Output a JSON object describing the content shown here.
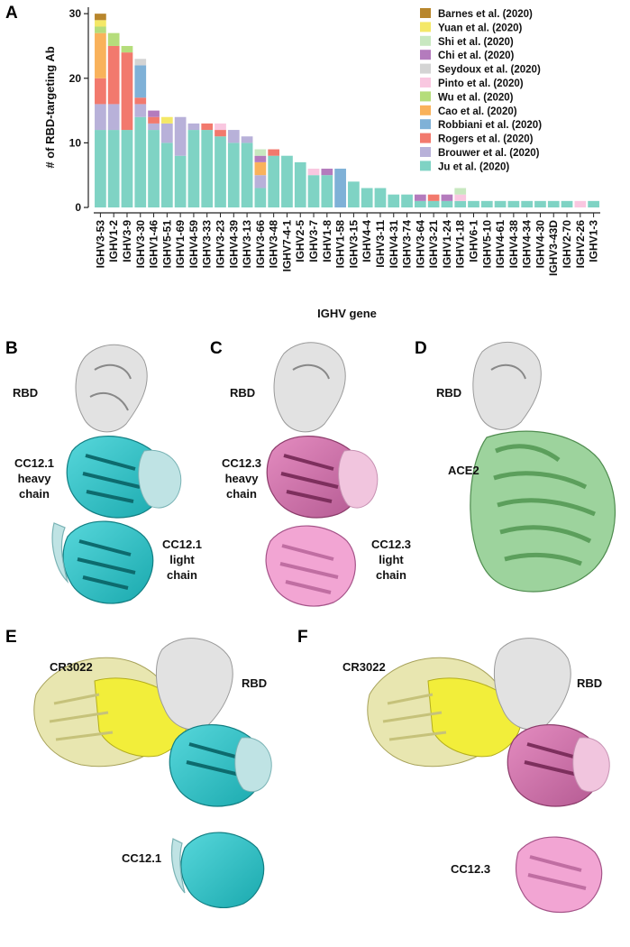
{
  "panels": {
    "A": "A",
    "B": "B",
    "C": "C",
    "D": "D",
    "E": "E",
    "F": "F"
  },
  "structure_labels": {
    "B_rbd": "RBD",
    "B_heavy": [
      "CC12.1",
      "heavy",
      "chain"
    ],
    "B_light": [
      "CC12.1",
      "light",
      "chain"
    ],
    "C_rbd": "RBD",
    "C_heavy": [
      "CC12.3",
      "heavy",
      "chain"
    ],
    "C_light": [
      "CC12.3",
      "light",
      "chain"
    ],
    "D_rbd": "RBD",
    "D_ace2": "ACE2",
    "E_cr3022": "CR3022",
    "E_rbd": "RBD",
    "E_cc": "CC12.1",
    "F_cr3022": "CR3022",
    "F_rbd": "RBD",
    "F_cc": "CC12.3"
  },
  "colors": {
    "rbd": "#d6d6d6",
    "cc121": "#3ec8cc",
    "cc121_light": "#a9d8da",
    "cc123": "#d872ad",
    "cc123_light": "#f0a8d2",
    "ace2": "#8cc98c",
    "cr3022": "#eeea3c",
    "cr3022_light": "#e8e6a8"
  },
  "chart_data": {
    "type": "bar",
    "stacked": true,
    "xlabel": "IGHV gene",
    "ylabel": "# of RBD-targeting Ab",
    "ylim": [
      0,
      31
    ],
    "yticks": [
      0,
      10,
      20,
      30
    ],
    "legend_position": "top-right",
    "categories": [
      "IGHV3-53",
      "IGHV1-2",
      "IGHV3-9",
      "IGHV3-30",
      "IGHV1-46",
      "IGHV5-51",
      "IGHV1-69",
      "IGHV4-59",
      "IGHV3-33",
      "IGHV3-23",
      "IGHV4-39",
      "IGHV3-13",
      "IGHV3-66",
      "IGHV3-48",
      "IGHV7-4-1",
      "IGHV2-5",
      "IGHV3-7",
      "IGHV1-8",
      "IGHV1-58",
      "IGHV3-15",
      "IGHV4-4",
      "IGHV3-11",
      "IGHV4-31",
      "IGHV3-74",
      "IGHV3-64",
      "IGHV3-21",
      "IGHV1-24",
      "IGHV1-18",
      "IGHV6-1",
      "IGHV5-10",
      "IGHV4-61",
      "IGHV4-38",
      "IGHV4-34",
      "IGHV4-30",
      "IGHV3-43D",
      "IGHV2-70",
      "IGHV2-26",
      "IGHV1-3"
    ],
    "series": [
      {
        "name": "Ju et al. (2020)",
        "color": "#7fd3c4",
        "values": [
          12,
          12,
          12,
          14,
          12,
          10,
          8,
          12,
          12,
          11,
          10,
          10,
          3,
          8,
          8,
          7,
          5,
          5,
          0,
          4,
          3,
          3,
          2,
          2,
          1,
          1,
          1,
          1,
          1,
          1,
          1,
          1,
          1,
          1,
          1,
          1,
          0,
          1
        ]
      },
      {
        "name": "Brouwer et al. (2020)",
        "color": "#b8b1d9",
        "values": [
          4,
          4,
          0,
          2,
          1,
          3,
          6,
          1,
          0,
          0,
          2,
          1,
          2,
          0,
          0,
          0,
          0,
          0,
          0,
          0,
          0,
          0,
          0,
          0,
          0,
          0,
          0,
          0,
          0,
          0,
          0,
          0,
          0,
          0,
          0,
          0,
          0,
          0
        ]
      },
      {
        "name": "Rogers et al. (2020)",
        "color": "#f2796d",
        "values": [
          4,
          9,
          12,
          1,
          1,
          0,
          0,
          0,
          1,
          1,
          0,
          0,
          0,
          1,
          0,
          0,
          0,
          0,
          0,
          0,
          0,
          0,
          0,
          0,
          0,
          1,
          0,
          0,
          0,
          0,
          0,
          0,
          0,
          0,
          0,
          0,
          0,
          0
        ]
      },
      {
        "name": "Robbiani et al. (2020)",
        "color": "#7fb1d7",
        "values": [
          0,
          0,
          0,
          5,
          0,
          0,
          0,
          0,
          0,
          0,
          0,
          0,
          0,
          0,
          0,
          0,
          0,
          0,
          6,
          0,
          0,
          0,
          0,
          0,
          0,
          0,
          0,
          0,
          0,
          0,
          0,
          0,
          0,
          0,
          0,
          0,
          0,
          0
        ]
      },
      {
        "name": "Cao et al. (2020)",
        "color": "#f9b25b",
        "values": [
          7,
          0,
          0,
          0,
          0,
          0,
          0,
          0,
          0,
          0,
          0,
          0,
          2,
          0,
          0,
          0,
          0,
          0,
          0,
          0,
          0,
          0,
          0,
          0,
          0,
          0,
          0,
          0,
          0,
          0,
          0,
          0,
          0,
          0,
          0,
          0,
          0,
          0
        ]
      },
      {
        "name": "Wu et al. (2020)",
        "color": "#b5dd7b",
        "values": [
          1,
          2,
          1,
          0,
          0,
          0,
          0,
          0,
          0,
          0,
          0,
          0,
          0,
          0,
          0,
          0,
          0,
          0,
          0,
          0,
          0,
          0,
          0,
          0,
          0,
          0,
          0,
          0,
          0,
          0,
          0,
          0,
          0,
          0,
          0,
          0,
          0,
          0
        ]
      },
      {
        "name": "Pinto et al. (2020)",
        "color": "#f9c7e0",
        "values": [
          0,
          0,
          0,
          0,
          0,
          0,
          0,
          0,
          0,
          1,
          0,
          0,
          0,
          0,
          0,
          0,
          1,
          0,
          0,
          0,
          0,
          0,
          0,
          0,
          0,
          0,
          0,
          1,
          0,
          0,
          0,
          0,
          0,
          0,
          0,
          0,
          1,
          0
        ]
      },
      {
        "name": "Seydoux et al. (2020)",
        "color": "#d4d4d4",
        "values": [
          0,
          0,
          0,
          1,
          0,
          0,
          0,
          0,
          0,
          0,
          0,
          0,
          0,
          0,
          0,
          0,
          0,
          0,
          0,
          0,
          0,
          0,
          0,
          0,
          0,
          0,
          0,
          0,
          0,
          0,
          0,
          0,
          0,
          0,
          0,
          0,
          0,
          0
        ]
      },
      {
        "name": "Chi et al. (2020)",
        "color": "#b47bbd",
        "values": [
          0,
          0,
          0,
          0,
          1,
          0,
          0,
          0,
          0,
          0,
          0,
          0,
          1,
          0,
          0,
          0,
          0,
          1,
          0,
          0,
          0,
          0,
          0,
          0,
          1,
          0,
          1,
          0,
          0,
          0,
          0,
          0,
          0,
          0,
          0,
          0,
          0,
          0
        ]
      },
      {
        "name": "Shi et al. (2020)",
        "color": "#c8e8c0",
        "values": [
          0,
          0,
          0,
          0,
          0,
          0,
          0,
          0,
          0,
          0,
          0,
          0,
          1,
          0,
          0,
          0,
          0,
          0,
          0,
          0,
          0,
          0,
          0,
          0,
          0,
          0,
          0,
          1,
          0,
          0,
          0,
          0,
          0,
          0,
          0,
          0,
          0,
          0
        ]
      },
      {
        "name": "Yuan et al. (2020)",
        "color": "#f4e867",
        "values": [
          1,
          0,
          0,
          0,
          0,
          1,
          0,
          0,
          0,
          0,
          0,
          0,
          0,
          0,
          0,
          0,
          0,
          0,
          0,
          0,
          0,
          0,
          0,
          0,
          0,
          0,
          0,
          0,
          0,
          0,
          0,
          0,
          0,
          0,
          0,
          0,
          0,
          0
        ]
      },
      {
        "name": "Barnes et al. (2020)",
        "color": "#b8862c",
        "values": [
          1,
          0,
          0,
          0,
          0,
          0,
          0,
          0,
          0,
          0,
          0,
          0,
          0,
          0,
          0,
          0,
          0,
          0,
          0,
          0,
          0,
          0,
          0,
          0,
          0,
          0,
          0,
          0,
          0,
          0,
          0,
          0,
          0,
          0,
          0,
          0,
          0,
          0
        ]
      }
    ],
    "legend_order": [
      "Barnes et al. (2020)",
      "Yuan et al. (2020)",
      "Shi et al. (2020)",
      "Chi et al. (2020)",
      "Seydoux et al. (2020)",
      "Pinto et al. (2020)",
      "Wu et al. (2020)",
      "Cao et al. (2020)",
      "Robbiani et al. (2020)",
      "Rogers et al. (2020)",
      "Brouwer et al. (2020)",
      "Ju et al. (2020)"
    ]
  }
}
